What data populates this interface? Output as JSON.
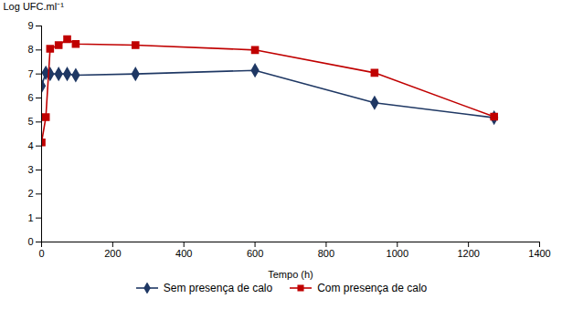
{
  "chart_data": {
    "type": "line",
    "x": [
      0,
      12,
      24,
      48,
      72,
      96,
      264,
      600,
      936,
      1272
    ],
    "series": [
      {
        "name": "Sem presença de calo",
        "color": "#1F3864",
        "marker": "diamond",
        "values": [
          6.5,
          7.05,
          7.0,
          7.0,
          7.0,
          6.95,
          7.0,
          7.15,
          5.8,
          5.18
        ]
      },
      {
        "name": "Com presença de calo",
        "color": "#C00000",
        "marker": "square",
        "values": [
          4.15,
          5.2,
          8.05,
          8.2,
          8.45,
          8.25,
          8.2,
          8.0,
          7.05,
          5.22
        ]
      }
    ],
    "xlabel": "Tempo (h)",
    "ylabel": "Log UFC.ml⁻¹",
    "xlim": [
      0,
      1400
    ],
    "ylim": [
      0,
      9
    ],
    "xticks": [
      0,
      200,
      400,
      600,
      800,
      1000,
      1200,
      1400
    ],
    "yticks": [
      0,
      1,
      2,
      3,
      4,
      5,
      6,
      7,
      8,
      9
    ],
    "grid": false,
    "legend": "bottom"
  }
}
